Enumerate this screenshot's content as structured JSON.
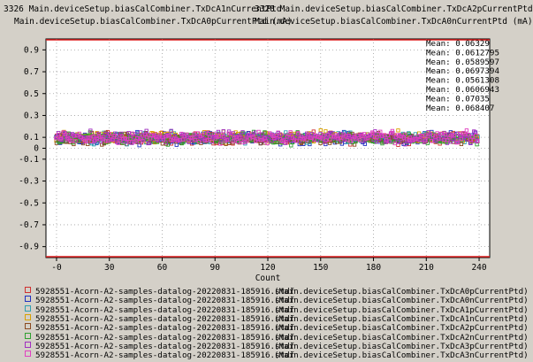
{
  "header": {
    "line1_left": "3326 Main.deviceSetup.biasCalCombiner.TxDcA1nCurrentPtd",
    "line1_right": "3328 Main.deviceSetup.biasCalCombiner.TxDcA2pCurrentPtd",
    "line2_left": "Main.deviceSetup.biasCalCombiner.TxDcA0pCurrentPtd (mA)",
    "line2_right": "Main.deviceSetup.biasCalCombiner.TxDcA0nCurrentPtd (mA)"
  },
  "chart_data": {
    "type": "scatter",
    "xlabel": "Count",
    "ylabel": "",
    "xlim": [
      -6,
      246
    ],
    "ylim": [
      -1.0,
      1.0
    ],
    "x_ticks": [
      0,
      30,
      60,
      90,
      120,
      150,
      180,
      210,
      240
    ],
    "x_tick_labels": [
      "-0",
      "30",
      "60",
      "90",
      "120",
      "150",
      "180",
      "210",
      "240"
    ],
    "y_ticks": [
      0.9,
      0.7,
      0.5,
      0.3,
      0.1,
      0,
      -0.1,
      -0.3,
      -0.5,
      -0.7,
      -0.9
    ],
    "y_tick_labels": [
      "0.9",
      "0.7",
      "0.5",
      "0.3",
      "0.1",
      "0",
      "-0.1",
      "-0.3",
      "-0.5",
      "-0.7",
      "-0.9"
    ],
    "grid": true,
    "limit_lines": [
      1.0,
      -1.0
    ],
    "limit_color": "#e02020",
    "points_per_series": 240,
    "series": [
      {
        "file": "5928551-Acorn-A2-samples-datalog-20220831-185916.stdf",
        "param": "(Main.deviceSetup.biasCalCombiner.TxDcA0pCurrentPtd)",
        "mean_label": "Mean: 0.06329",
        "mean": 0.06329,
        "color": "#d03030"
      },
      {
        "file": "5928551-Acorn-A2-samples-datalog-20220831-185916.stdf",
        "param": "(Main.deviceSetup.biasCalCombiner.TxDcA0nCurrentPtd)",
        "mean_label": "Mean: 0.0612795",
        "mean": 0.0612795,
        "color": "#2030c0"
      },
      {
        "file": "5928551-Acorn-A2-samples-datalog-20220831-185916.stdf",
        "param": "(Main.deviceSetup.biasCalCombiner.TxDcA1pCurrentPtd)",
        "mean_label": "Mean: 0.0589597",
        "mean": 0.0589597,
        "color": "#30a0b0"
      },
      {
        "file": "5928551-Acorn-A2-samples-datalog-20220831-185916.stdf",
        "param": "(Main.deviceSetup.biasCalCombiner.TxDcA1nCurrentPtd)",
        "mean_label": "Mean: 0.0697394",
        "mean": 0.0697394,
        "color": "#d8a000"
      },
      {
        "file": "5928551-Acorn-A2-samples-datalog-20220831-185916.stdf",
        "param": "(Main.deviceSetup.biasCalCombiner.TxDcA2pCurrentPtd)",
        "mean_label": "Mean: 0.0561308",
        "mean": 0.0561308,
        "color": "#8a4a20"
      },
      {
        "file": "5928551-Acorn-A2-samples-datalog-20220831-185916.stdf",
        "param": "(Main.deviceSetup.biasCalCombiner.TxDcA2nCurrentPtd)",
        "mean_label": "Mean: 0.0606943",
        "mean": 0.0606943,
        "color": "#30a030"
      },
      {
        "file": "5928551-Acorn-A2-samples-datalog-20220831-185916.stdf",
        "param": "(Main.deviceSetup.biasCalCombiner.TxDcA3pCurrentPtd)",
        "mean_label": "Mean: 0.07035",
        "mean": 0.07035,
        "color": "#a030c0"
      },
      {
        "file": "5928551-Acorn-A2-samples-datalog-20220831-185916.stdf",
        "param": "(Main.deviceSetup.biasCalCombiner.TxDcA3nCurrentPtd)",
        "mean_label": "Mean: 0.068407",
        "mean": 0.068407,
        "color": "#e040c0"
      }
    ]
  }
}
